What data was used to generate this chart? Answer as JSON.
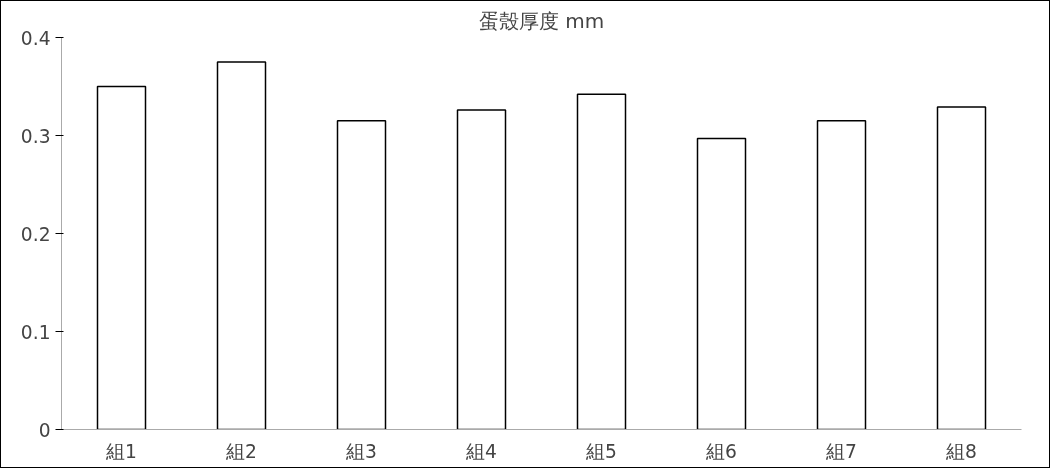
{
  "chart_data": {
    "type": "bar",
    "title": "蛋殼厚度 mm",
    "categories": [
      "組1",
      "組2",
      "組3",
      "組4",
      "組5",
      "組6",
      "組7",
      "組8"
    ],
    "values": [
      0.35,
      0.375,
      0.315,
      0.326,
      0.342,
      0.297,
      0.315,
      0.329
    ],
    "color": "#ffffff",
    "ylim": [
      0,
      0.4
    ],
    "yticks": [
      0,
      0.1,
      0.2,
      0.3,
      0.4
    ],
    "grid": false
  }
}
